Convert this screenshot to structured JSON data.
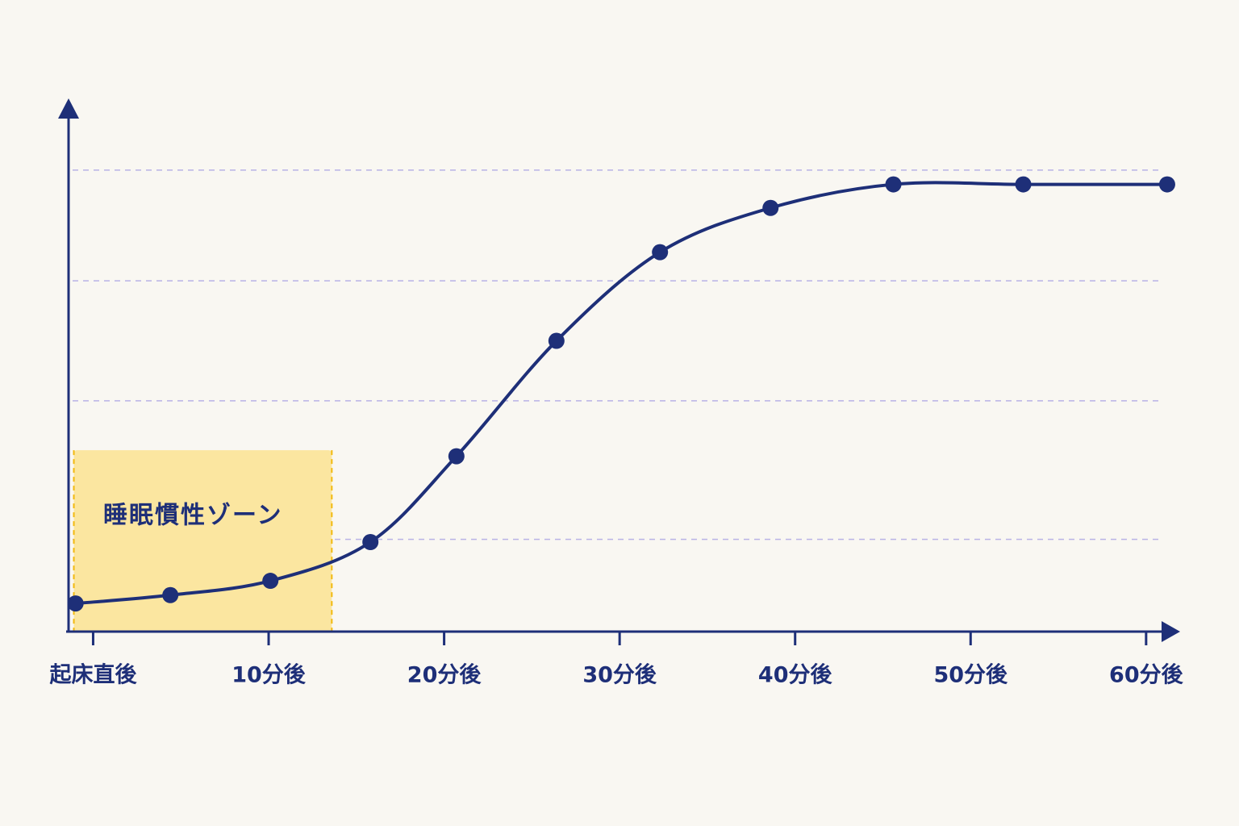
{
  "chart_data": {
    "type": "line",
    "x": [
      -1.0,
      4.4,
      10.1,
      15.8,
      20.7,
      26.4,
      32.3,
      38.6,
      45.6,
      53.0,
      61.2
    ],
    "series": [
      {
        "color": "#1e2f78",
        "values": [
          6.1,
          7.9,
          11.0,
          19.4,
          38.0,
          63.0,
          82.2,
          91.8,
          96.9,
          96.9,
          96.9
        ]
      }
    ],
    "xlim": [
      -1.4,
      61.8
    ],
    "xticks": [
      {
        "value": 0,
        "label": "起床直後"
      },
      {
        "value": 10,
        "label": "10分後"
      },
      {
        "value": 20,
        "label": "20分後"
      },
      {
        "value": 30,
        "label": "30分後"
      },
      {
        "value": 40,
        "label": "40分後"
      },
      {
        "value": 50,
        "label": "50分後"
      },
      {
        "value": 60,
        "label": "60分後"
      }
    ],
    "ylim": [
      0,
      115
    ],
    "yticks": [
      20,
      50,
      76,
      100
    ],
    "grid": true,
    "annotation": {
      "label": "睡眠慣性ゾーン",
      "x": [
        -1.1,
        13.6
      ],
      "ymax": 39.3,
      "color": "#fbe6a0",
      "edge_color": "#f2b90f"
    }
  }
}
